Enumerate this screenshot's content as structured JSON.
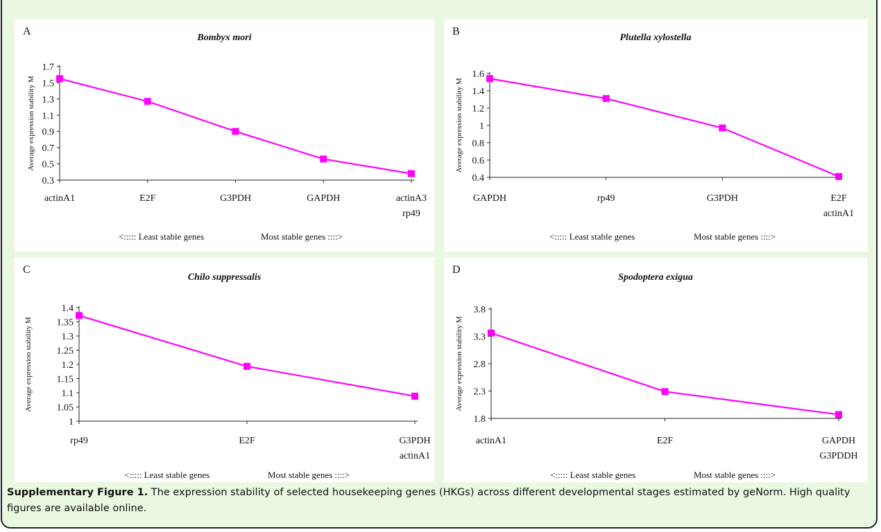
{
  "caption": {
    "label": "Supplementary Figure 1.",
    "text": " The expression stability of selected housekeeping genes (HKGs) across different developmental stages estimated by geNorm. High quality figures are available online."
  },
  "colors": {
    "line": "#ff00ff",
    "background": "#eaf8e1",
    "panel": "#ffffff"
  },
  "chart_data": [
    {
      "type": "line",
      "panel": "A",
      "title": "Bombyx mori",
      "ylabel": "Average expression stability M",
      "xlabel": "",
      "categories": [
        [
          "actinA1"
        ],
        [
          "E2F"
        ],
        [
          "G3PDH"
        ],
        [
          "GAPDH"
        ],
        [
          "actinA3",
          "rp49"
        ]
      ],
      "values": [
        1.55,
        1.27,
        0.9,
        0.56,
        0.38
      ],
      "ylim": [
        0.3,
        1.7
      ],
      "yticks": [
        {
          "v": 0.3,
          "t": "0.3"
        },
        {
          "v": 0.5,
          "t": "0.5"
        },
        {
          "v": 0.7,
          "t": "0.7"
        },
        {
          "v": 0.9,
          "t": "0.9"
        },
        {
          "v": 1.1,
          "t": "1.1"
        },
        {
          "v": 1.3,
          "t": "1.3"
        },
        {
          "v": 1.5,
          "t": "1.5"
        },
        {
          "v": 1.7,
          "t": "1.7"
        }
      ],
      "note_left": "<:::::  Least stable genes",
      "note_right": "Most stable genes ::::>",
      "grid": false
    },
    {
      "type": "line",
      "panel": "B",
      "title": "Plutella xylostella",
      "ylabel": "Average expression stability M",
      "xlabel": "",
      "categories": [
        [
          "GAPDH"
        ],
        [
          "rp49"
        ],
        [
          "G3PDH"
        ],
        [
          "E2F",
          "actinA1"
        ]
      ],
      "values": [
        1.54,
        1.31,
        0.97,
        0.41
      ],
      "ylim": [
        0.4,
        1.6
      ],
      "yticks": [
        {
          "v": 0.4,
          "t": "0.4"
        },
        {
          "v": 0.6,
          "t": "0.6"
        },
        {
          "v": 0.8,
          "t": "0.8"
        },
        {
          "v": 1.0,
          "t": "1"
        },
        {
          "v": 1.2,
          "t": "1.2"
        },
        {
          "v": 1.4,
          "t": "1.4"
        },
        {
          "v": 1.6,
          "t": "1.6"
        }
      ],
      "note_left": "<:::::  Least stable genes",
      "note_right": "Most stable genes ::::>",
      "grid": false
    },
    {
      "type": "line",
      "panel": "C",
      "title": "Chilo suppressalis",
      "ylabel": "Average expression stability M",
      "xlabel": "",
      "categories": [
        [
          "rp49"
        ],
        [
          "E2F"
        ],
        [
          "G3PDH",
          "actinA1"
        ]
      ],
      "values": [
        1.372,
        1.193,
        1.088
      ],
      "ylim": [
        1.0,
        1.4
      ],
      "yticks": [
        {
          "v": 1.0,
          "t": "1"
        },
        {
          "v": 1.05,
          "t": "1.05"
        },
        {
          "v": 1.1,
          "t": "1.1"
        },
        {
          "v": 1.15,
          "t": "1.15"
        },
        {
          "v": 1.2,
          "t": "1.2"
        },
        {
          "v": 1.25,
          "t": "1.25"
        },
        {
          "v": 1.3,
          "t": "1.3"
        },
        {
          "v": 1.35,
          "t": "1.35"
        },
        {
          "v": 1.4,
          "t": "1.4"
        }
      ],
      "note_left": "<:::::  Least stable genes",
      "note_right": "Most stable genes ::::>",
      "grid": false
    },
    {
      "type": "line",
      "panel": "D",
      "title": "Spodoptera exigua",
      "ylabel": "Average expression stability M",
      "xlabel": "",
      "categories": [
        [
          "actinA1"
        ],
        [
          "E2F"
        ],
        [
          "GAPDH",
          "G3PDDH"
        ]
      ],
      "values": [
        3.36,
        2.29,
        1.87
      ],
      "ylim": [
        1.8,
        3.8
      ],
      "yticks": [
        {
          "v": 1.8,
          "t": "1.8"
        },
        {
          "v": 2.3,
          "t": "2.3"
        },
        {
          "v": 2.8,
          "t": "2.8"
        },
        {
          "v": 3.3,
          "t": "3.3"
        },
        {
          "v": 3.8,
          "t": "3.8"
        }
      ],
      "note_left": "<:::::  Least stable genes",
      "note_right": "Most stable genes ::::>",
      "grid": false
    }
  ]
}
